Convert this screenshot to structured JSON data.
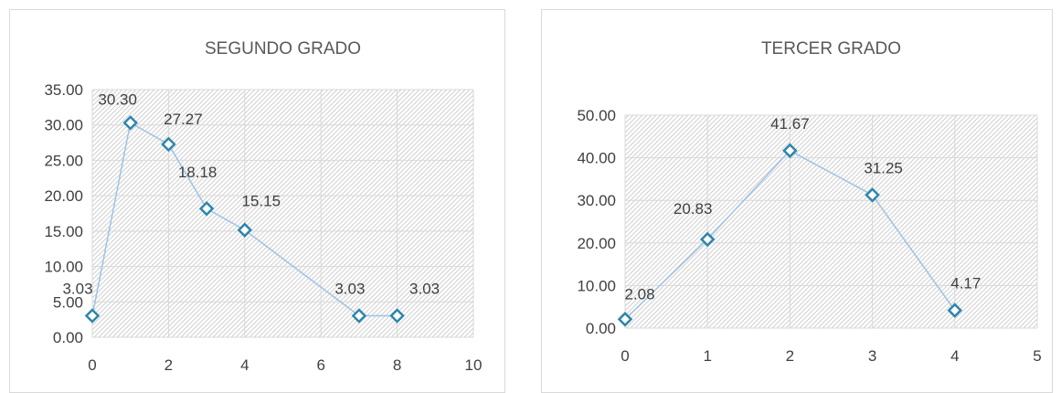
{
  "colors": {
    "series": "#9dc3e6",
    "marker": "#2e86ab",
    "grid": "#d9d9d9",
    "hatch": "#d0d0d0"
  },
  "chart_data": [
    {
      "type": "scatter",
      "title": "SEGUNDO GRADO",
      "xlabel": "",
      "ylabel": "",
      "xlim": [
        0,
        10
      ],
      "ylim": [
        0,
        35
      ],
      "x_ticks": [
        "0",
        "2",
        "4",
        "6",
        "8",
        "10"
      ],
      "y_ticks": [
        "0.00",
        "5.00",
        "10.00",
        "15.00",
        "20.00",
        "25.00",
        "30.00",
        "35.00"
      ],
      "grid": true,
      "series": [
        {
          "x": [
            0,
            1,
            2,
            3,
            4,
            7,
            8
          ],
          "y": [
            3.03,
            30.3,
            27.27,
            18.18,
            15.15,
            3.03,
            3.03
          ],
          "labels": [
            "3.03",
            "30.30",
            "27.27",
            "18.18",
            "15.15",
            "3.03",
            "3.03"
          ]
        }
      ]
    },
    {
      "type": "scatter",
      "title": "TERCER GRADO",
      "xlabel": "",
      "ylabel": "",
      "xlim": [
        0,
        5
      ],
      "ylim": [
        0,
        50
      ],
      "x_ticks": [
        "0",
        "1",
        "2",
        "3",
        "4",
        "5"
      ],
      "y_ticks": [
        "0.00",
        "10.00",
        "20.00",
        "30.00",
        "40.00",
        "50.00"
      ],
      "grid": true,
      "series": [
        {
          "x": [
            0,
            1,
            2,
            3,
            4
          ],
          "y": [
            2.08,
            20.83,
            41.67,
            31.25,
            4.17
          ],
          "labels": [
            "2.08",
            "20.83",
            "41.67",
            "31.25",
            "4.17"
          ]
        }
      ]
    }
  ]
}
